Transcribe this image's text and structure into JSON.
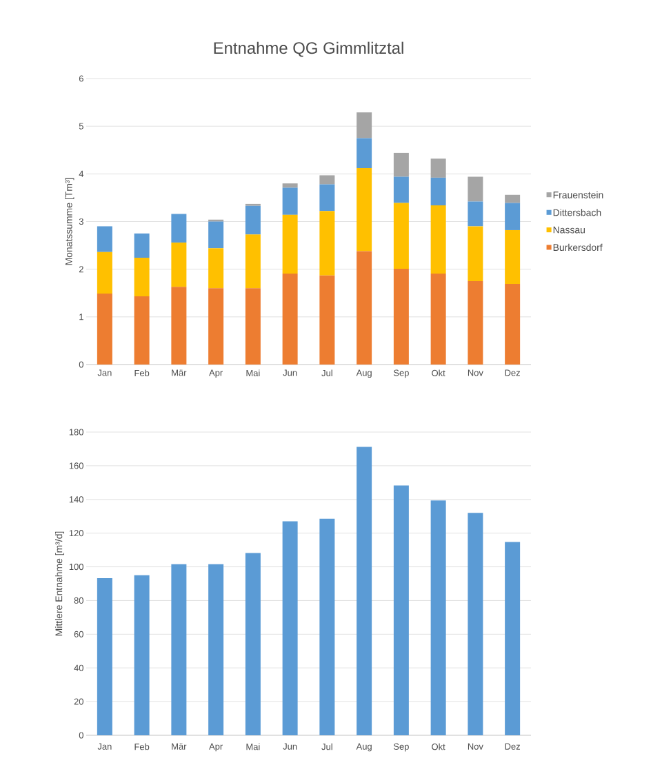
{
  "chart_data": [
    {
      "type": "bar",
      "title": "Entnahme QG Gimmlitztal",
      "ylabel": "Monatssumme [Tm³]",
      "stacked": true,
      "grid": "y",
      "legend": "right",
      "categories": [
        "Jan",
        "Feb",
        "Mär",
        "Apr",
        "Mai",
        "Jun",
        "Jul",
        "Aug",
        "Sep",
        "Okt",
        "Nov",
        "Dez"
      ],
      "ylim": [
        0,
        6
      ],
      "yticks": [
        0,
        1,
        2,
        3,
        4,
        5,
        6
      ],
      "series": [
        {
          "name": "Burkersdorf",
          "color": "#ed7d31",
          "values": [
            1.49,
            1.43,
            1.63,
            1.6,
            1.6,
            1.91,
            1.87,
            2.38,
            2.01,
            1.91,
            1.75,
            1.69
          ]
        },
        {
          "name": "Nassau",
          "color": "#ffc000",
          "values": [
            0.87,
            0.81,
            0.93,
            0.84,
            1.13,
            1.23,
            1.35,
            1.74,
            1.38,
            1.43,
            1.15,
            1.13
          ]
        },
        {
          "name": "Dittersbach",
          "color": "#5b9bd5",
          "values": [
            0.54,
            0.51,
            0.6,
            0.56,
            0.6,
            0.57,
            0.56,
            0.63,
            0.55,
            0.58,
            0.52,
            0.57
          ]
        },
        {
          "name": "Frauenstein",
          "color": "#a5a5a5",
          "values": [
            0,
            0,
            0,
            0.04,
            0.04,
            0.09,
            0.19,
            0.54,
            0.5,
            0.4,
            0.52,
            0.17
          ]
        }
      ]
    },
    {
      "type": "bar",
      "ylabel": "Mittlere Entnahme [m³/d]",
      "grid": "y",
      "categories": [
        "Jan",
        "Feb",
        "Mär",
        "Apr",
        "Mai",
        "Jun",
        "Jul",
        "Aug",
        "Sep",
        "Okt",
        "Nov",
        "Dez"
      ],
      "ylim": [
        0,
        180
      ],
      "yticks": [
        0,
        20,
        40,
        60,
        80,
        100,
        120,
        140,
        160,
        180
      ],
      "series": [
        {
          "color": "#5b9bd5",
          "values": [
            93.3,
            95,
            101.6,
            101.6,
            108.2,
            127,
            128.6,
            171.2,
            148.3,
            139.4,
            132,
            114.7
          ]
        }
      ]
    }
  ]
}
